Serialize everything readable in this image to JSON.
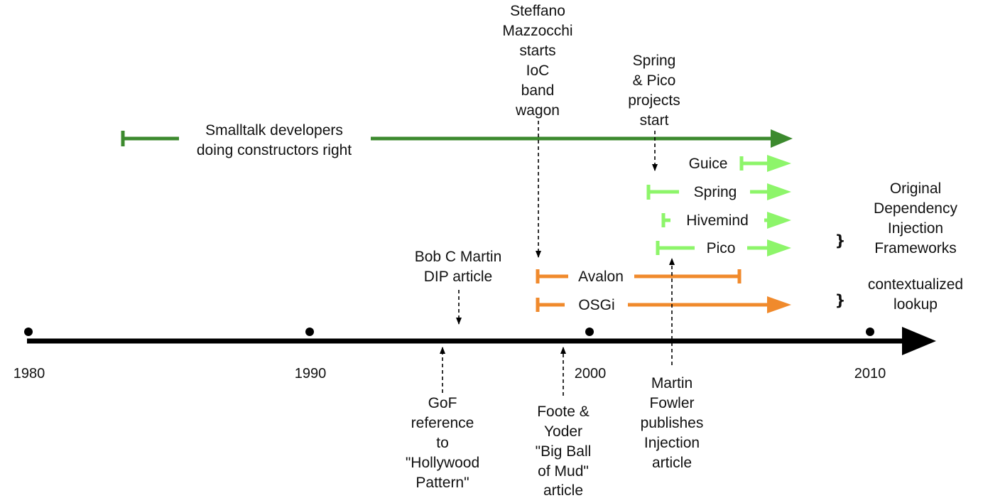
{
  "colors": {
    "axis": "#000000",
    "dark_green": "#3c8a2e",
    "light_green": "#8df56a",
    "orange": "#f08a2c",
    "text": "#111111"
  },
  "axis": {
    "years": [
      "1980",
      "1990",
      "2000",
      "2010"
    ]
  },
  "spans": {
    "smalltalk": [
      "Smalltalk developers",
      "doing constructors right"
    ],
    "guice": "Guice",
    "spring": "Spring",
    "hivemind": "Hivemind",
    "pico": "Pico",
    "avalon": "Avalon",
    "osgi": "OSGi"
  },
  "events": {
    "mazzocchi": [
      "Steffano",
      "Mazzocchi",
      "starts",
      "IoC",
      "band",
      "wagon"
    ],
    "spring_pico_start": [
      "Spring",
      "& Pico",
      "projects",
      "start"
    ],
    "bob_martin": [
      "Bob C Martin",
      "DIP article"
    ],
    "gof": [
      "GoF",
      "reference",
      "to",
      "\"Hollywood",
      "Pattern\""
    ],
    "foote_yoder": [
      "Foote &",
      "Yoder",
      "\"Big Ball",
      "of Mud\"",
      "article"
    ],
    "fowler": [
      "Martin",
      "Fowler",
      "publishes",
      "Injection",
      "article"
    ]
  },
  "groups": {
    "original": [
      "Original",
      "Dependency",
      "Injection",
      "Frameworks"
    ],
    "contextualized": [
      "contextualized",
      "lookup"
    ]
  },
  "brace_glyph": "}"
}
